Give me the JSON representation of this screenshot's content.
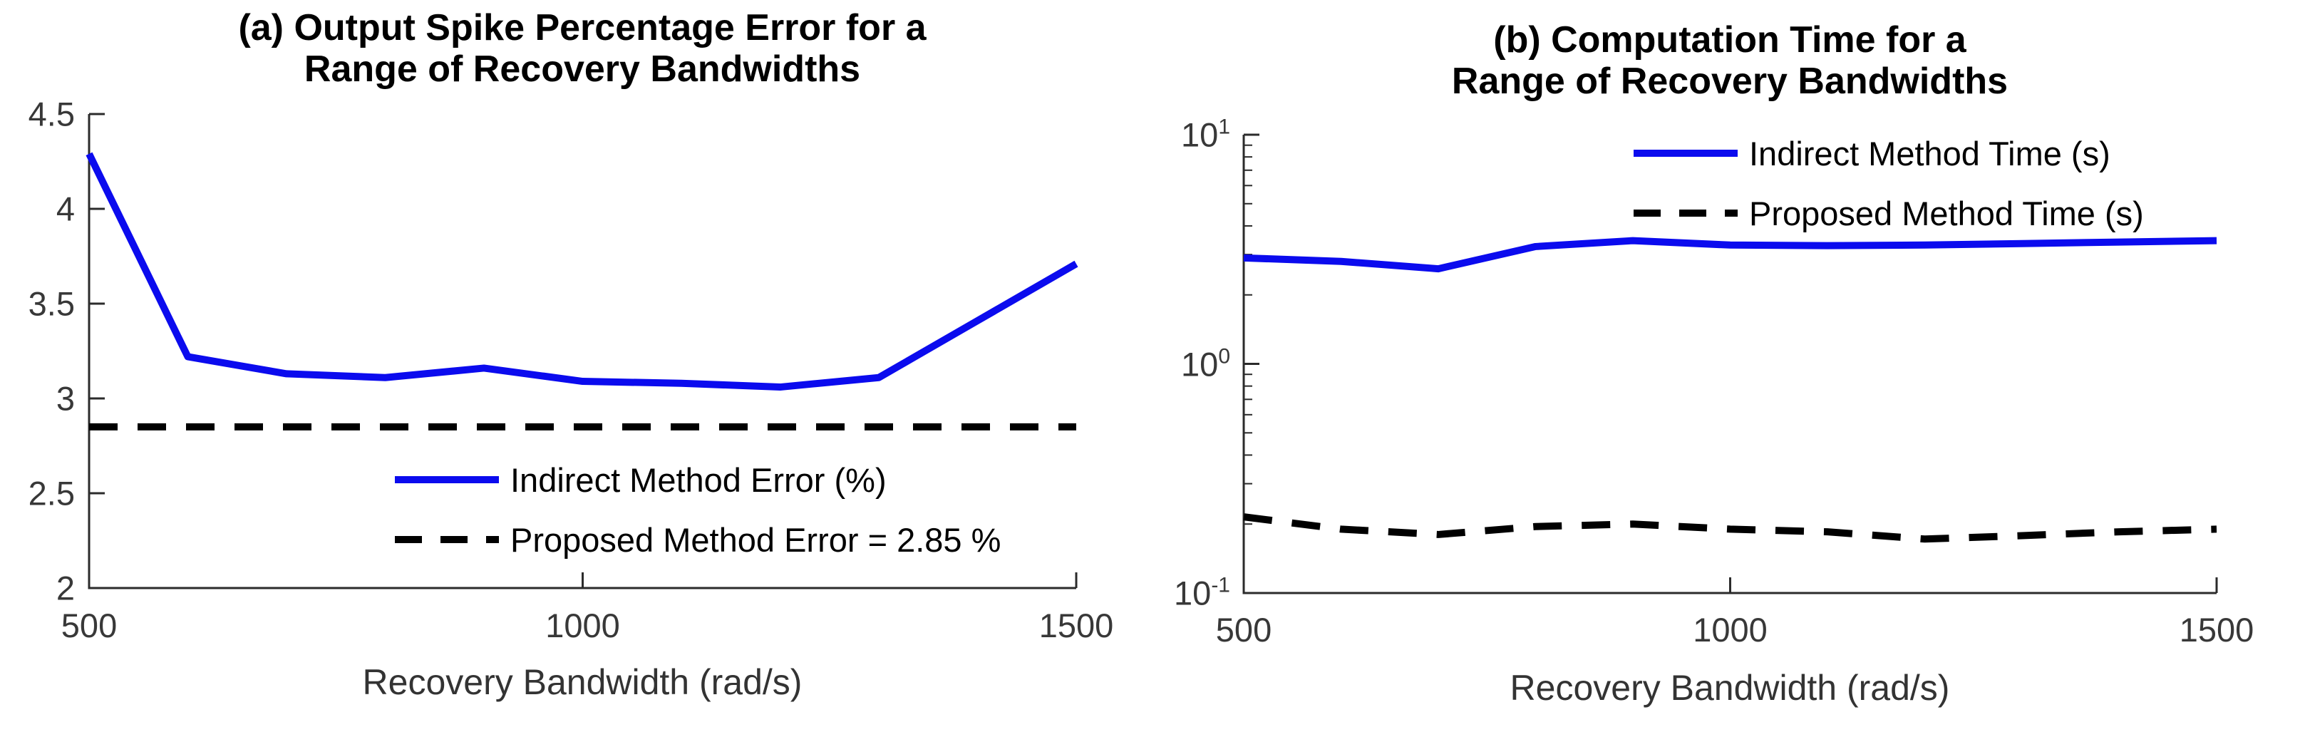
{
  "colors": {
    "line_blue": "#0b0bee",
    "line_black": "#000000",
    "axis": "#2b2b2b",
    "tick_text": "#383838",
    "title_text": "#000000",
    "background": "#ffffff"
  },
  "chart_data": [
    {
      "id": "a",
      "type": "line",
      "title_line1": "(a) Output Spike Percentage Error for a",
      "title_line2": "Range of Recovery Bandwidths",
      "xlabel": "Recovery Bandwidth (rad/s)",
      "ylabel": "",
      "yscale": "linear",
      "xlim": [
        500,
        1500
      ],
      "ylim": [
        2,
        4.5
      ],
      "grid": false,
      "legend_position": "inside-lower-center",
      "xticks": {
        "values": [
          500,
          1000,
          1500
        ],
        "labels": [
          "500",
          "1000",
          "1500"
        ]
      },
      "yticks": [
        {
          "value": 2,
          "label": "2"
        },
        {
          "value": 2.5,
          "label": "2.5"
        },
        {
          "value": 3,
          "label": "3"
        },
        {
          "value": 3.5,
          "label": "3.5"
        },
        {
          "value": 4,
          "label": "4"
        },
        {
          "value": 4.5,
          "label": "4.5"
        }
      ],
      "x": [
        500,
        600,
        700,
        800,
        900,
        1000,
        1100,
        1200,
        1300,
        1400,
        1500
      ],
      "series": [
        {
          "name": "Indirect Method Error (%)",
          "style": "solid",
          "color_key": "line_blue",
          "values": [
            4.29,
            3.22,
            3.13,
            3.11,
            3.16,
            3.09,
            3.08,
            3.06,
            3.11,
            3.41,
            3.71
          ]
        },
        {
          "name": "Proposed Method Error = 2.85 %",
          "style": "dashed",
          "color_key": "line_black",
          "values": [
            2.85,
            2.85,
            2.85,
            2.85,
            2.85,
            2.85,
            2.85,
            2.85,
            2.85,
            2.85,
            2.85
          ]
        }
      ]
    },
    {
      "id": "b",
      "type": "line",
      "title_line1": "(b) Computation Time for a",
      "title_line2": "Range of Recovery Bandwidths",
      "xlabel": "Recovery Bandwidth (rad/s)",
      "ylabel": "",
      "yscale": "log",
      "xlim": [
        500,
        1500
      ],
      "ylim": [
        0.1,
        10
      ],
      "grid": false,
      "legend_position": "inside-upper-right",
      "xticks": {
        "values": [
          500,
          1000,
          1500
        ],
        "labels": [
          "500",
          "1000",
          "1500"
        ]
      },
      "yticks": [
        {
          "value": 10,
          "base": "10",
          "exp": "1"
        },
        {
          "value": 1,
          "base": "10",
          "exp": "0"
        },
        {
          "value": 0.1,
          "base": "10",
          "exp": "-1"
        }
      ],
      "x": [
        500,
        600,
        700,
        800,
        900,
        1000,
        1100,
        1200,
        1300,
        1400,
        1500
      ],
      "series": [
        {
          "name": "Indirect Method Time (s)",
          "style": "solid",
          "color_key": "line_blue",
          "values": [
            2.9,
            2.8,
            2.6,
            3.25,
            3.45,
            3.3,
            3.28,
            3.3,
            3.35,
            3.4,
            3.45
          ]
        },
        {
          "name": "Proposed Method Time (s)",
          "style": "dashed",
          "color_key": "line_black",
          "values": [
            0.215,
            0.19,
            0.18,
            0.195,
            0.2,
            0.19,
            0.185,
            0.172,
            0.178,
            0.185,
            0.19
          ]
        }
      ]
    }
  ]
}
